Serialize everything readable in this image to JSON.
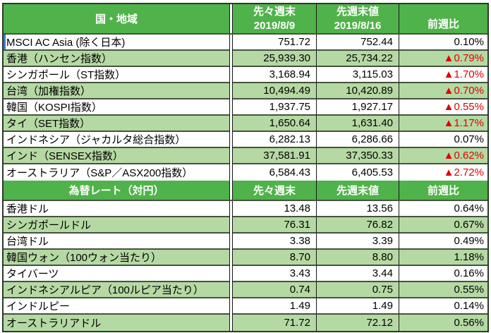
{
  "colors": {
    "header_green": "#50b24a",
    "row_light_green": "#b5d9a3",
    "negative_red": "#dd0202",
    "selection_blue": "#4577c9",
    "border_dark": "#2c3a2a"
  },
  "stock_table": {
    "header": {
      "col1": "国・地域",
      "col2_line1": "先々週末",
      "col2_line2": "2019/8/9",
      "col3_line1": "先週末値",
      "col3_line2": "2019/8/16",
      "col4": "前週比"
    },
    "rows": [
      {
        "label": "MSCI AC Asia (除く日本)",
        "prev": "751.72",
        "last": "752.44",
        "change": "0.10%",
        "negative": false,
        "selected": true
      },
      {
        "label": "香港（ハンセン指数）",
        "prev": "25,939.30",
        "last": "25,734.22",
        "change": "▲0.79%",
        "negative": true,
        "selected": false
      },
      {
        "label": "シンガポール（ST指数）",
        "prev": "3,168.94",
        "last": "3,115.03",
        "change": "▲1.70%",
        "negative": true,
        "selected": false
      },
      {
        "label": "台湾（加権指数）",
        "prev": "10,494.49",
        "last": "10,420.89",
        "change": "▲0.70%",
        "negative": true,
        "selected": false
      },
      {
        "label": "韓国（KOSPI指数）",
        "prev": "1,937.75",
        "last": "1,927.17",
        "change": "▲0.55%",
        "negative": true,
        "selected": false
      },
      {
        "label": "タイ（SET指数）",
        "prev": "1,650.64",
        "last": "1,631.40",
        "change": "▲1.17%",
        "negative": true,
        "selected": false
      },
      {
        "label": "インドネシア（ジャカルタ総合指数）",
        "prev": "6,282.13",
        "last": "6,286.66",
        "change": "0.07%",
        "negative": false,
        "selected": false
      },
      {
        "label": "インド（SENSEX指数）",
        "prev": "37,581.91",
        "last": "37,350.33",
        "change": "▲0.62%",
        "negative": true,
        "selected": false
      },
      {
        "label": "オーストラリア（S&P／ASX200指数）",
        "prev": "6,584.43",
        "last": "6,405.53",
        "change": "▲2.72%",
        "negative": true,
        "selected": false
      }
    ]
  },
  "fx_table": {
    "header": {
      "col1": "為替レート（対円）",
      "col2": "先々週末",
      "col3": "先週末値",
      "col4": "前週比"
    },
    "rows": [
      {
        "label": "香港ドル",
        "prev": "13.48",
        "last": "13.56",
        "change": "0.64%",
        "negative": false
      },
      {
        "label": "シンガポールドル",
        "prev": "76.31",
        "last": "76.82",
        "change": "0.67%",
        "negative": false
      },
      {
        "label": "台湾ドル",
        "prev": "3.38",
        "last": "3.39",
        "change": "0.49%",
        "negative": false
      },
      {
        "label": "韓国ウォン（100ウォン当たり）",
        "prev": "8.70",
        "last": "8.80",
        "change": "1.18%",
        "negative": false
      },
      {
        "label": "タイバーツ",
        "prev": "3.43",
        "last": "3.44",
        "change": "0.16%",
        "negative": false
      },
      {
        "label": "インドネシアルピア（100ルピア当たり）",
        "prev": "0.74",
        "last": "0.75",
        "change": "0.55%",
        "negative": false
      },
      {
        "label": "インドルピー",
        "prev": "1.49",
        "last": "1.49",
        "change": "0.14%",
        "negative": false
      },
      {
        "label": "オーストラリアドル",
        "prev": "71.72",
        "last": "72.12",
        "change": "0.56%",
        "negative": false
      }
    ]
  }
}
